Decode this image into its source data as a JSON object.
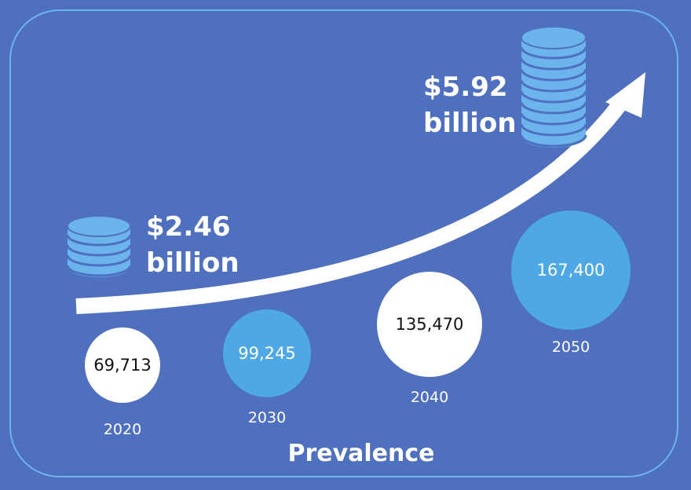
{
  "chart_data": {
    "type": "bubble",
    "title": "Prevalence",
    "categories": [
      "2020",
      "2030",
      "2040",
      "2050"
    ],
    "series": [
      {
        "values": [
          69713,
          99245,
          135470,
          167400
        ]
      }
    ],
    "value_labels": [
      "69,713",
      "99,245",
      "135,470",
      "167,400"
    ],
    "bubble_colors": [
      "#ffffff",
      "#4ea8e6",
      "#ffffff",
      "#4ea8e6"
    ],
    "annotations": [
      {
        "amount": "$2.46",
        "unit": "billion",
        "year": "2020"
      },
      {
        "amount": "$5.92",
        "unit": "billion",
        "year": "2050"
      }
    ],
    "trend": "increasing"
  },
  "icons": [
    "coin-stack-icon",
    "coin-stack-icon",
    "trend-arrow-icon"
  ],
  "colors": {
    "background": "#4f6fbf",
    "frame": "#6cb5ec",
    "coin": "#6cb5ec",
    "accent_bubble": "#4ea8e6",
    "text": "#ffffff"
  }
}
